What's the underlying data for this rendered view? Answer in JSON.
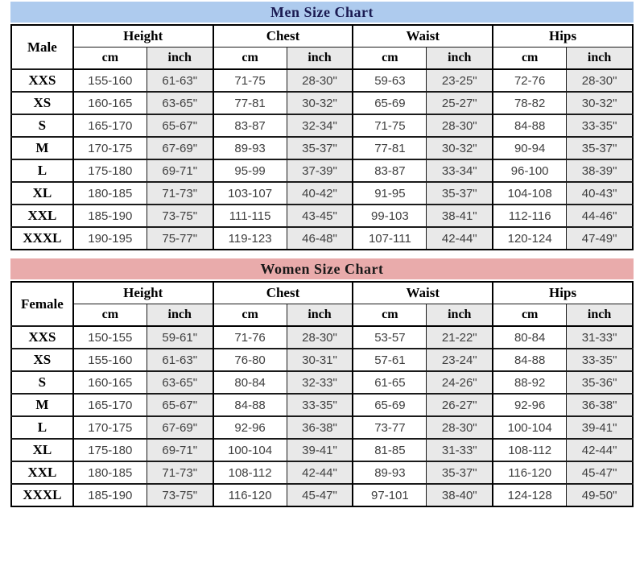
{
  "colors": {
    "men_band": "#aecbee",
    "men_title": "#1b1b52",
    "women_band": "#e9abab",
    "women_title": "#181818",
    "unit_inch_bg": "#e9e9e9",
    "data_text": "#3f3f3f",
    "border": "#000000"
  },
  "chart_data": [
    {
      "type": "table",
      "title": "Men Size Chart",
      "row_header": "Male",
      "groups": [
        "Height",
        "Chest",
        "Waist",
        "Hips"
      ],
      "units": [
        "cm",
        "inch"
      ],
      "sizes": [
        "XXS",
        "XS",
        "S",
        "M",
        "L",
        "XL",
        "XXL",
        "XXXL"
      ],
      "rows": [
        [
          "155-160",
          "61-63\"",
          "71-75",
          "28-30\"",
          "59-63",
          "23-25\"",
          "72-76",
          "28-30\""
        ],
        [
          "160-165",
          "63-65\"",
          "77-81",
          "30-32\"",
          "65-69",
          "25-27\"",
          "78-82",
          "30-32\""
        ],
        [
          "165-170",
          "65-67\"",
          "83-87",
          "32-34\"",
          "71-75",
          "28-30\"",
          "84-88",
          "33-35\""
        ],
        [
          "170-175",
          "67-69\"",
          "89-93",
          "35-37\"",
          "77-81",
          "30-32\"",
          "90-94",
          "35-37\""
        ],
        [
          "175-180",
          "69-71\"",
          "95-99",
          "37-39\"",
          "83-87",
          "33-34\"",
          "96-100",
          "38-39\""
        ],
        [
          "180-185",
          "71-73\"",
          "103-107",
          "40-42\"",
          "91-95",
          "35-37\"",
          "104-108",
          "40-43\""
        ],
        [
          "185-190",
          "73-75\"",
          "111-115",
          "43-45\"",
          "99-103",
          "38-41\"",
          "112-116",
          "44-46\""
        ],
        [
          "190-195",
          "75-77\"",
          "119-123",
          "46-48\"",
          "107-111",
          "42-44\"",
          "120-124",
          "47-49\""
        ]
      ]
    },
    {
      "type": "table",
      "title": "Women Size Chart",
      "row_header": "Female",
      "groups": [
        "Height",
        "Chest",
        "Waist",
        "Hips"
      ],
      "units": [
        "cm",
        "inch"
      ],
      "sizes": [
        "XXS",
        "XS",
        "S",
        "M",
        "L",
        "XL",
        "XXL",
        "XXXL"
      ],
      "rows": [
        [
          "150-155",
          "59-61\"",
          "71-76",
          "28-30\"",
          "53-57",
          "21-22\"",
          "80-84",
          "31-33\""
        ],
        [
          "155-160",
          "61-63\"",
          "76-80",
          "30-31\"",
          "57-61",
          "23-24\"",
          "84-88",
          "33-35\""
        ],
        [
          "160-165",
          "63-65\"",
          "80-84",
          "32-33\"",
          "61-65",
          "24-26\"",
          "88-92",
          "35-36\""
        ],
        [
          "165-170",
          "65-67\"",
          "84-88",
          "33-35\"",
          "65-69",
          "26-27\"",
          "92-96",
          "36-38\""
        ],
        [
          "170-175",
          "67-69\"",
          "92-96",
          "36-38\"",
          "73-77",
          "28-30\"",
          "100-104",
          "39-41\""
        ],
        [
          "175-180",
          "69-71\"",
          "100-104",
          "39-41\"",
          "81-85",
          "31-33\"",
          "108-112",
          "42-44\""
        ],
        [
          "180-185",
          "71-73\"",
          "108-112",
          "42-44\"",
          "89-93",
          "35-37\"",
          "116-120",
          "45-47\""
        ],
        [
          "185-190",
          "73-75\"",
          "116-120",
          "45-47\"",
          "97-101",
          "38-40\"",
          "124-128",
          "49-50\""
        ]
      ]
    }
  ]
}
